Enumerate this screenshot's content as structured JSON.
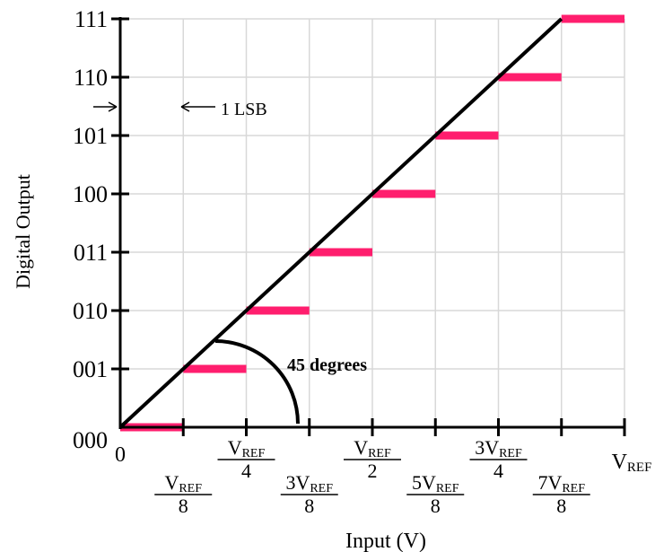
{
  "chart_data": {
    "type": "line",
    "ylabel": "Digital Output",
    "xlabel": "Input (V)",
    "x_unit": "V_REF",
    "xlim": [
      0,
      1
    ],
    "y_codes": [
      "000",
      "001",
      "010",
      "011",
      "100",
      "101",
      "110",
      "111"
    ],
    "x_ticks": [
      0,
      0.125,
      0.25,
      0.375,
      0.5,
      0.625,
      0.75,
      0.875,
      1
    ],
    "x_tick_labels": [
      {
        "x": 0,
        "plain": "0"
      },
      {
        "x": 0.125,
        "num": "V",
        "sub": "REF",
        "den": "8"
      },
      {
        "x": 0.25,
        "num": "V",
        "sub": "REF",
        "den": "4"
      },
      {
        "x": 0.375,
        "num": "3V",
        "sub": "REF",
        "den": "8"
      },
      {
        "x": 0.5,
        "num": "V",
        "sub": "REF",
        "den": "2"
      },
      {
        "x": 0.625,
        "num": "5V",
        "sub": "REF",
        "den": "8"
      },
      {
        "x": 0.75,
        "num": "3V",
        "sub": "REF",
        "den": "4"
      },
      {
        "x": 0.875,
        "num": "7V",
        "sub": "REF",
        "den": "8"
      },
      {
        "x": 1,
        "plain": "V",
        "sub": "REF"
      }
    ],
    "series": [
      {
        "type": "step",
        "color": "#ff1e6e",
        "segments": [
          {
            "x0": 0,
            "x1": 0.125,
            "code": 0
          },
          {
            "x0": 0.125,
            "x1": 0.25,
            "code": 1
          },
          {
            "x0": 0.25,
            "x1": 0.375,
            "code": 2
          },
          {
            "x0": 0.375,
            "x1": 0.5,
            "code": 3
          },
          {
            "x0": 0.5,
            "x1": 0.625,
            "code": 4
          },
          {
            "x0": 0.625,
            "x1": 0.75,
            "code": 5
          },
          {
            "x0": 0.75,
            "x1": 0.875,
            "code": 6
          },
          {
            "x0": 0.875,
            "x1": 1,
            "code": 7
          }
        ]
      },
      {
        "type": "ideal-line",
        "color": "#000000",
        "from": [
          0,
          0
        ],
        "to": [
          0.875,
          7
        ]
      }
    ],
    "annotations": {
      "lsb_label": "1 LSB",
      "angle_label": "45 degrees"
    },
    "grid": true
  }
}
